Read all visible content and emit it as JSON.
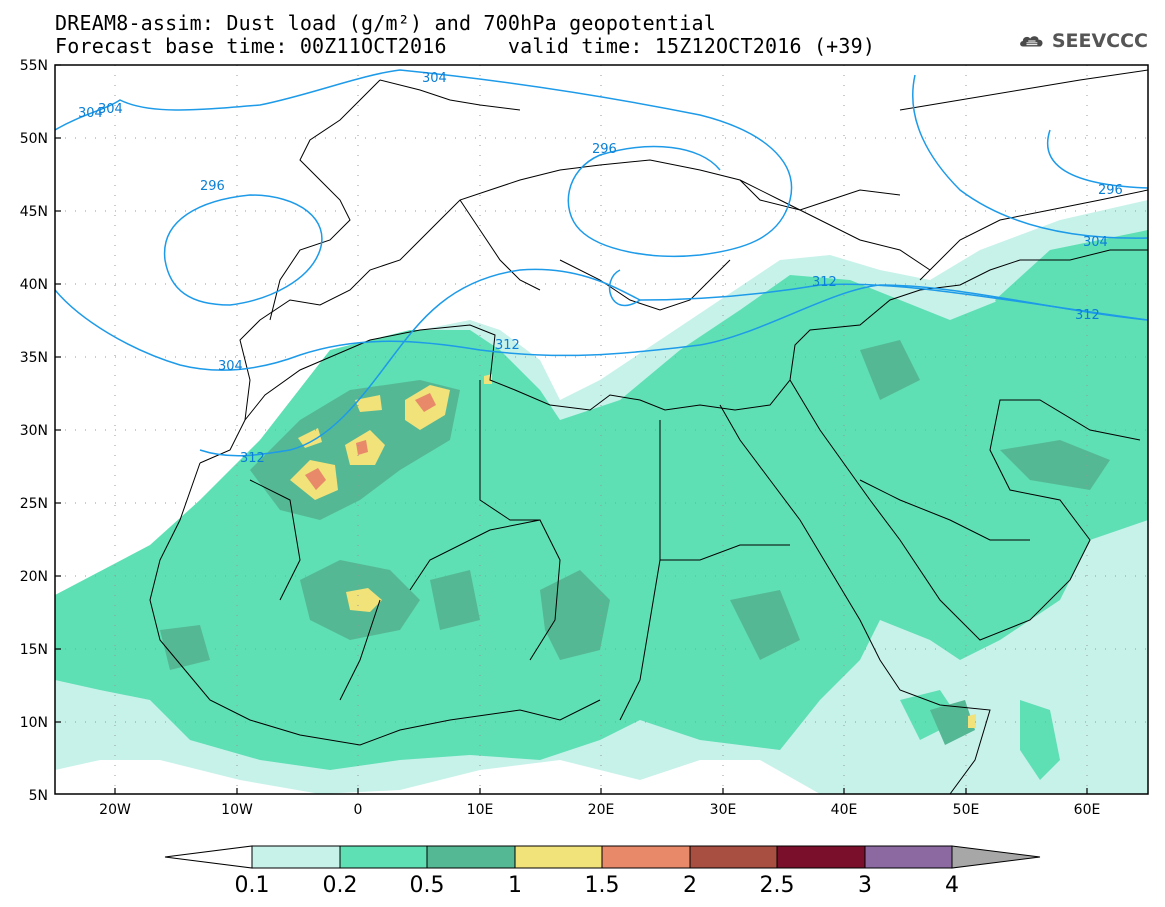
{
  "header": {
    "title_line1": "DREAM8-assim: Dust load (g/m²) and 700hPa geopotential",
    "title_line2": "Forecast base time: 00Z11OCT2016     valid time: 15Z12OCT2016 (+39)",
    "logo_text": "SEEVCCC",
    "logo_icon": "cloud-icon"
  },
  "map": {
    "lon_range": [
      -25,
      65
    ],
    "lat_range": [
      5,
      55
    ],
    "lat_labels": [
      "55N",
      "50N",
      "45N",
      "40N",
      "35N",
      "30N",
      "25N",
      "20N",
      "15N",
      "10N",
      "5N"
    ],
    "lon_labels": [
      "20W",
      "10W",
      "0",
      "10E",
      "20E",
      "30E",
      "40E",
      "50E",
      "60E"
    ],
    "contour_labels": [
      "304",
      "304",
      "296",
      "296",
      "296",
      "304",
      "304",
      "304",
      "312",
      "312",
      "312",
      "312"
    ],
    "contour_color": "#1d9ae8"
  },
  "colorbar": {
    "labels": [
      "0.1",
      "0.2",
      "0.5",
      "1",
      "1.5",
      "2",
      "2.5",
      "3",
      "4"
    ],
    "colors": [
      "#c7f2ea",
      "#5fdfb4",
      "#55b894",
      "#f1e27a",
      "#e8896a",
      "#a84f42",
      "#7a0f2c",
      "#8c6aa1",
      "#a7a7a7"
    ]
  }
}
